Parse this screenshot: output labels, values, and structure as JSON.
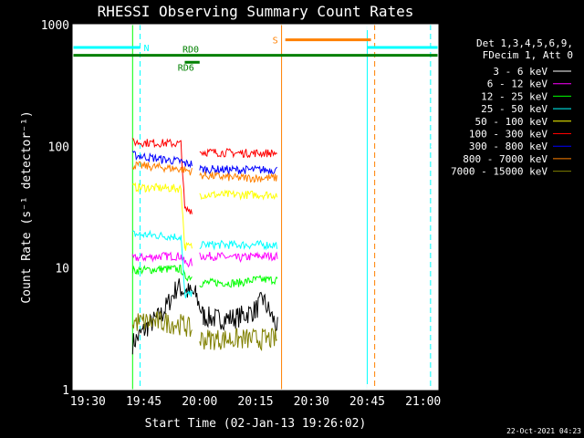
{
  "chart_data": {
    "type": "line",
    "title": "RHESSI Observing Summary Count Rates",
    "xlabel": "Start Time (02-Jan-13 19:26:02)",
    "ylabel": "Count Rate (s⁻¹ detector⁻¹)",
    "yscale": "log",
    "ylim": [
      1,
      1000
    ],
    "xlim": [
      "19:26",
      "21:04"
    ],
    "x_ticks": [
      "19:30",
      "19:45",
      "20:00",
      "20:15",
      "20:30",
      "20:45",
      "21:00"
    ],
    "y_ticks": [
      "1",
      "10",
      "100",
      "1000"
    ],
    "legend_header": [
      "Det 1,3,4,5,6,9,",
      "FDecim 1, Att 0"
    ],
    "legend_position": "right",
    "series": [
      {
        "name": "3 - 6 keV",
        "color": "#ffffff",
        "plot_color": "#000000",
        "segments": [
          {
            "x": [
              "19:42",
              "19:46",
              "19:50",
              "19:54",
              "19:56",
              "19:59",
              "20:01",
              "20:05",
              "20:10",
              "20:15",
              "20:17",
              "20:21"
            ],
            "y": [
              2.4,
              3.3,
              4.2,
              7,
              6.5,
              6,
              4,
              3.8,
              3.9,
              4.5,
              5.5,
              3.2
            ]
          }
        ]
      },
      {
        "name": "6 - 12 keV",
        "color": "#ff00ff",
        "segments": [
          {
            "x": [
              "19:42",
              "19:50",
              "19:55",
              "19:56",
              "19:58"
            ],
            "y": [
              12,
              12.5,
              12.5,
              11,
              11
            ]
          },
          {
            "x": [
              "20:00",
              "20:05",
              "20:10",
              "20:15",
              "20:21"
            ],
            "y": [
              12.5,
              12.5,
              12,
              12.5,
              12.5
            ]
          }
        ]
      },
      {
        "name": "12 - 25 keV",
        "color": "#00ff00",
        "segments": [
          {
            "x": [
              "19:42",
              "19:50",
              "19:55",
              "19:56",
              "19:58"
            ],
            "y": [
              9.5,
              9.8,
              9.8,
              8.5,
              8.5
            ]
          },
          {
            "x": [
              "20:00",
              "20:05",
              "20:10",
              "20:15",
              "20:21"
            ],
            "y": [
              7.5,
              7.6,
              7.5,
              8,
              8
            ]
          }
        ]
      },
      {
        "name": "25 - 50 keV",
        "color": "#00ffff",
        "segments": [
          {
            "x": [
              "19:42",
              "19:55",
              "19:56",
              "19:58"
            ],
            "y": [
              19,
              18,
              6,
              6
            ]
          },
          {
            "x": [
              "20:00",
              "20:10",
              "20:21"
            ],
            "y": [
              15.5,
              15.5,
              15.5
            ]
          }
        ]
      },
      {
        "name": "50 - 100 keV",
        "color": "#ffff00",
        "segments": [
          {
            "x": [
              "19:42",
              "19:55",
              "19:56",
              "19:58"
            ],
            "y": [
              46,
              45,
              15,
              15
            ]
          },
          {
            "x": [
              "20:00",
              "20:10",
              "20:21"
            ],
            "y": [
              40,
              40,
              40
            ]
          }
        ]
      },
      {
        "name": "100 - 300 keV",
        "color": "#ff0000",
        "segments": [
          {
            "x": [
              "19:42",
              "19:55",
              "19:56",
              "19:58"
            ],
            "y": [
              108,
              105,
              30,
              30
            ]
          },
          {
            "x": [
              "20:00",
              "20:10",
              "20:21"
            ],
            "y": [
              90,
              88,
              88
            ]
          }
        ]
      },
      {
        "name": "300 - 800 keV",
        "color": "#0000ff",
        "segments": [
          {
            "x": [
              "19:42",
              "19:50",
              "19:55",
              "19:56",
              "19:58"
            ],
            "y": [
              85,
              78,
              75,
              72,
              72
            ]
          },
          {
            "x": [
              "20:00",
              "20:10",
              "20:21"
            ],
            "y": [
              65,
              64,
              64
            ]
          }
        ]
      },
      {
        "name": "800 - 7000 keV",
        "color": "#ff8000",
        "segments": [
          {
            "x": [
              "19:42",
              "19:50",
              "19:55",
              "19:58"
            ],
            "y": [
              70,
              67,
              65,
              62
            ]
          },
          {
            "x": [
              "20:00",
              "20:10",
              "20:21"
            ],
            "y": [
              58,
              55,
              55
            ]
          }
        ]
      },
      {
        "name": "7000 - 15000 keV",
        "color": "#808000",
        "segments": [
          {
            "x": [
              "19:42",
              "19:50",
              "19:56",
              "19:58"
            ],
            "y": [
              3.6,
              3.6,
              3.4,
              3
            ]
          },
          {
            "x": [
              "20:00",
              "20:10",
              "20:21"
            ],
            "y": [
              2.6,
              2.6,
              2.6
            ]
          }
        ]
      }
    ],
    "flag_bars": [
      {
        "label": "N",
        "color": "#00ffff",
        "x": [
          "19:26",
          "19:44"
        ],
        "y": 650
      },
      {
        "label": "",
        "color": "#00ffff",
        "x": [
          "20:45",
          "21:04"
        ],
        "y": 650
      },
      {
        "label": "S",
        "color": "#ff8000",
        "x": [
          "20:23",
          "20:46"
        ],
        "y": 750
      },
      {
        "label": "RD0",
        "color": "#008000",
        "x": [
          "19:26",
          "21:04"
        ],
        "y": 560
      },
      {
        "label": "RD6",
        "color": "#008000",
        "x": [
          "19:56",
          "20:00"
        ],
        "y": 490
      }
    ],
    "vertical_lines": [
      {
        "x": "19:26",
        "color": "#00ffff",
        "style": "solid"
      },
      {
        "x": "19:44",
        "color": "#00ffff",
        "style": "dashed"
      },
      {
        "x": "19:42",
        "color": "#00ff00",
        "style": "solid"
      },
      {
        "x": "20:22",
        "color": "#ff8000",
        "style": "solid"
      },
      {
        "x": "20:45",
        "color": "#00ffff",
        "style": "solid"
      },
      {
        "x": "20:47",
        "color": "#ff8000",
        "style": "dashed"
      },
      {
        "x": "21:02",
        "color": "#00ffff",
        "style": "dashed"
      }
    ]
  },
  "footer_timestamp": "22-Oct-2021 04:23"
}
